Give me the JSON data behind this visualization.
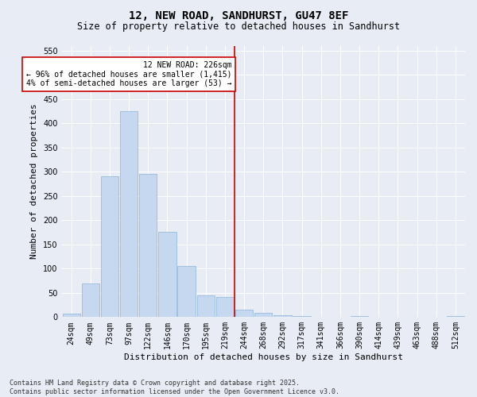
{
  "title": "12, NEW ROAD, SANDHURST, GU47 8EF",
  "subtitle": "Size of property relative to detached houses in Sandhurst",
  "xlabel": "Distribution of detached houses by size in Sandhurst",
  "ylabel": "Number of detached properties",
  "categories": [
    "24sqm",
    "49sqm",
    "73sqm",
    "97sqm",
    "122sqm",
    "146sqm",
    "170sqm",
    "195sqm",
    "219sqm",
    "244sqm",
    "268sqm",
    "292sqm",
    "317sqm",
    "341sqm",
    "366sqm",
    "390sqm",
    "414sqm",
    "439sqm",
    "463sqm",
    "488sqm",
    "512sqm"
  ],
  "values": [
    7,
    70,
    290,
    425,
    295,
    176,
    106,
    44,
    41,
    16,
    8,
    4,
    2,
    1,
    0,
    3,
    1,
    0,
    0,
    0,
    2
  ],
  "bar_color": "#c5d8f0",
  "bar_edge_color": "#8ab4d8",
  "property_line_idx": 8.5,
  "property_line_label": "12 NEW ROAD: 226sqm",
  "annotation_line1": "← 96% of detached houses are smaller (1,415)",
  "annotation_line2": "4% of semi-detached houses are larger (53) →",
  "annotation_box_color": "#ffffff",
  "annotation_box_edge_color": "#cc0000",
  "line_color": "#cc0000",
  "ylim": [
    0,
    560
  ],
  "yticks": [
    0,
    50,
    100,
    150,
    200,
    250,
    300,
    350,
    400,
    450,
    500,
    550
  ],
  "background_color": "#e8edf5",
  "plot_bg_color": "#e8edf5",
  "footer_line1": "Contains HM Land Registry data © Crown copyright and database right 2025.",
  "footer_line2": "Contains public sector information licensed under the Open Government Licence v3.0.",
  "title_fontsize": 10,
  "subtitle_fontsize": 8.5,
  "axis_label_fontsize": 8,
  "tick_fontsize": 7,
  "annotation_fontsize": 7,
  "footer_fontsize": 6
}
